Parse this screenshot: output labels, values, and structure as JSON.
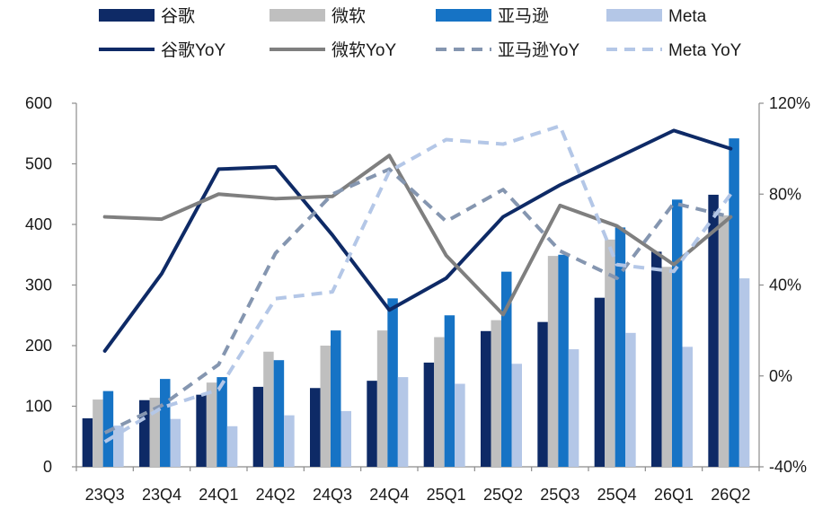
{
  "chart_data": {
    "type": "bar",
    "categories": [
      "23Q3",
      "23Q4",
      "24Q1",
      "24Q2",
      "24Q3",
      "24Q4",
      "25Q1",
      "25Q2",
      "25Q3",
      "25Q4",
      "26Q1",
      "26Q2"
    ],
    "ylim": [
      0,
      600
    ],
    "yticks": [
      0,
      100,
      200,
      300,
      400,
      500,
      600
    ],
    "y2lim": [
      -40,
      120
    ],
    "y2ticks": [
      "-40%",
      "0%",
      "40%",
      "80%",
      "120%"
    ],
    "grid": false,
    "legend": "top",
    "series": [
      {
        "name": "谷歌",
        "type": "bar",
        "axis": "left",
        "color": "#0e2a66",
        "values": [
          80,
          110,
          119,
          132,
          130,
          142,
          172,
          224,
          239,
          279,
          355,
          449
        ]
      },
      {
        "name": "微软",
        "type": "bar",
        "axis": "left",
        "color": "#bfbfbf",
        "values": [
          111,
          114,
          139,
          190,
          200,
          225,
          214,
          242,
          348,
          375,
          330,
          415
        ]
      },
      {
        "name": "亚马逊",
        "type": "bar",
        "axis": "left",
        "color": "#1673c5",
        "values": [
          125,
          145,
          148,
          176,
          225,
          278,
          250,
          322,
          350,
          395,
          441,
          542
        ]
      },
      {
        "name": "Meta",
        "type": "bar",
        "axis": "left",
        "color": "#b4c7e7",
        "values": [
          68,
          79,
          67,
          85,
          92,
          148,
          137,
          170,
          194,
          221,
          198,
          311
        ]
      },
      {
        "name": "谷歌YoY",
        "type": "line",
        "axis": "right",
        "color": "#0e2a66",
        "style": "solid",
        "values": [
          11,
          45,
          91,
          92,
          62,
          29,
          43,
          70,
          84,
          96,
          108,
          100
        ]
      },
      {
        "name": "微软YoY",
        "type": "line",
        "axis": "right",
        "color": "#7f7f7f",
        "style": "solid",
        "values": [
          70,
          69,
          80,
          78,
          79,
          97,
          53,
          27,
          75,
          66,
          49,
          70
        ]
      },
      {
        "name": "亚马逊YoY",
        "type": "line",
        "axis": "right",
        "color": "#8596b0",
        "style": "dashed",
        "values": [
          -25,
          -13,
          5,
          54,
          80,
          91,
          68,
          82,
          55,
          43,
          76,
          70
        ]
      },
      {
        "name": "Meta YoY",
        "type": "line",
        "axis": "right",
        "color": "#b4c7e7",
        "style": "dashed",
        "values": [
          -29,
          -14,
          -6,
          34,
          37,
          90,
          104,
          102,
          110,
          49,
          46,
          80
        ]
      }
    ]
  }
}
